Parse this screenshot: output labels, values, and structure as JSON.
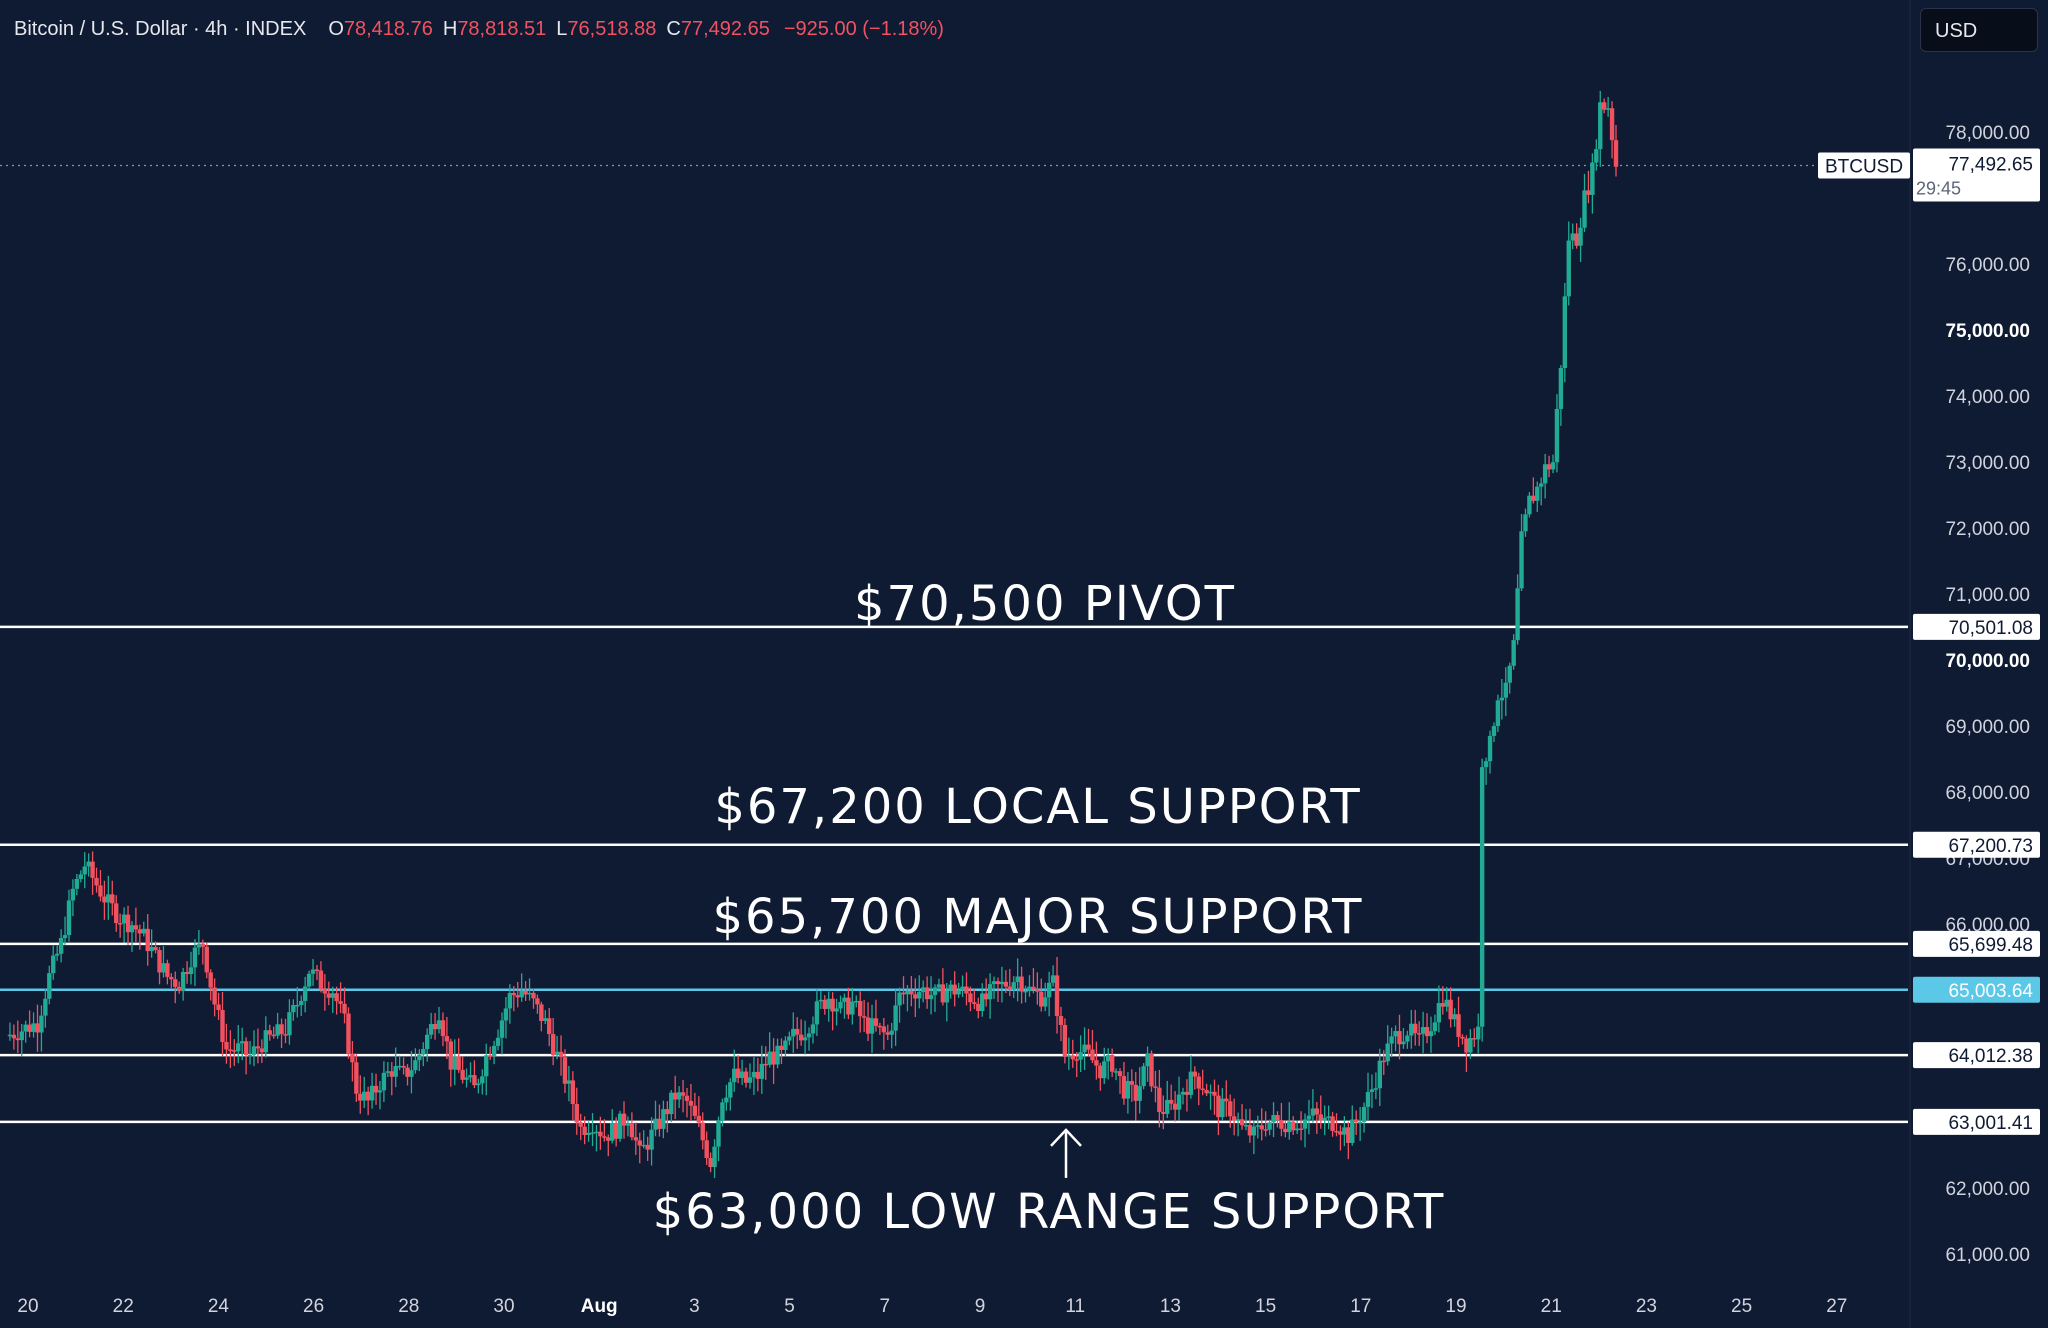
{
  "header": {
    "symbol": "Bitcoin / U.S. Dollar · 4h · INDEX",
    "open_key": "O",
    "open": "78,418.76",
    "high_key": "H",
    "high": "78,818.51",
    "low_key": "L",
    "low": "76,518.88",
    "close_key": "C",
    "close": "77,492.65",
    "change": "−925.00 (−1.18%)"
  },
  "currency": "USD",
  "colors": {
    "background": "#0f1a33",
    "up": "#22ab94",
    "down": "#f2525f",
    "level_line": "#ffffff",
    "cyan_line": "#5bc8e8"
  },
  "chart_data": {
    "type": "candlestick",
    "symbol_tag": "BTCUSD",
    "last_price_label": "77,492.65",
    "countdown": "29:45",
    "y_ticks": [
      "78,000.00",
      "76,000.00",
      "75,000.00",
      "74,000.00",
      "73,000.00",
      "72,000.00",
      "71,000.00",
      "70,000.00",
      "69,000.00",
      "68,000.00",
      "67,000.00",
      "66,000.00",
      "62,000.00",
      "61,000.00"
    ],
    "y_ticks_bold": [
      "75,000.00",
      "70,000.00"
    ],
    "x_ticks": [
      "20",
      "22",
      "24",
      "26",
      "28",
      "30",
      "Aug",
      "3",
      "5",
      "7",
      "9",
      "11",
      "13",
      "15",
      "17",
      "19",
      "21",
      "23",
      "25",
      "27"
    ],
    "levels": [
      {
        "price": 70501.08,
        "label": "70,501.08",
        "style": "white"
      },
      {
        "price": 67200.73,
        "label": "67,200.73",
        "style": "white"
      },
      {
        "price": 65699.48,
        "label": "65,699.48",
        "style": "white"
      },
      {
        "price": 65003.64,
        "label": "65,003.64",
        "style": "cyan"
      },
      {
        "price": 64012.38,
        "label": "64,012.38",
        "style": "white"
      },
      {
        "price": 63001.41,
        "label": "63,001.41",
        "style": "white"
      }
    ],
    "annotations": [
      {
        "text": "$70,500 PIVOT"
      },
      {
        "text": "$67,200 LOCAL SUPPORT"
      },
      {
        "text": "$65,700 MAJOR SUPPORT"
      },
      {
        "text": "$63,000 LOW RANGE SUPPORT"
      }
    ],
    "price_path": [
      [
        0,
        64300
      ],
      [
        4,
        64400
      ],
      [
        8,
        64500
      ],
      [
        11,
        65200
      ],
      [
        14,
        65700
      ],
      [
        17,
        66500
      ],
      [
        20,
        66900
      ],
      [
        23,
        66600
      ],
      [
        26,
        66300
      ],
      [
        29,
        66100
      ],
      [
        32,
        66000
      ],
      [
        35,
        65800
      ],
      [
        38,
        65500
      ],
      [
        41,
        65200
      ],
      [
        44,
        65100
      ],
      [
        47,
        65500
      ],
      [
        50,
        65700
      ],
      [
        53,
        64800
      ],
      [
        56,
        64100
      ],
      [
        59,
        64100
      ],
      [
        62,
        64000
      ],
      [
        65,
        64200
      ],
      [
        68,
        64300
      ],
      [
        71,
        64400
      ],
      [
        74,
        64800
      ],
      [
        77,
        65300
      ],
      [
        80,
        65100
      ],
      [
        83,
        65000
      ],
      [
        86,
        64500
      ],
      [
        89,
        63500
      ],
      [
        92,
        63300
      ],
      [
        95,
        63600
      ],
      [
        98,
        63800
      ],
      [
        101,
        63700
      ],
      [
        104,
        63900
      ],
      [
        107,
        64300
      ],
      [
        110,
        64700
      ],
      [
        113,
        63900
      ],
      [
        116,
        63700
      ],
      [
        119,
        63500
      ],
      [
        122,
        64000
      ],
      [
        125,
        64400
      ],
      [
        128,
        64900
      ],
      [
        131,
        65000
      ],
      [
        134,
        64800
      ],
      [
        137,
        64500
      ],
      [
        140,
        64000
      ],
      [
        143,
        63500
      ],
      [
        146,
        62900
      ],
      [
        149,
        63000
      ],
      [
        152,
        62800
      ],
      [
        155,
        62900
      ],
      [
        158,
        63100
      ],
      [
        161,
        62500
      ],
      [
        164,
        62800
      ],
      [
        167,
        63100
      ],
      [
        170,
        63400
      ],
      [
        173,
        63300
      ],
      [
        176,
        62900
      ],
      [
        179,
        62400
      ],
      [
        182,
        63400
      ],
      [
        185,
        63700
      ],
      [
        188,
        63600
      ],
      [
        191,
        63700
      ],
      [
        194,
        64000
      ],
      [
        197,
        64000
      ],
      [
        200,
        64300
      ],
      [
        203,
        64400
      ],
      [
        206,
        64700
      ],
      [
        209,
        64900
      ],
      [
        212,
        64700
      ],
      [
        215,
        64800
      ],
      [
        218,
        64500
      ],
      [
        221,
        64400
      ],
      [
        224,
        64300
      ],
      [
        227,
        64900
      ],
      [
        230,
        65000
      ],
      [
        233,
        65000
      ],
      [
        236,
        64900
      ],
      [
        239,
        65000
      ],
      [
        242,
        65000
      ],
      [
        245,
        64900
      ],
      [
        248,
        64800
      ],
      [
        251,
        65000
      ],
      [
        254,
        65100
      ],
      [
        257,
        65200
      ],
      [
        260,
        65000
      ],
      [
        263,
        64900
      ],
      [
        266,
        65100
      ],
      [
        269,
        64000
      ],
      [
        272,
        64100
      ],
      [
        275,
        64000
      ],
      [
        278,
        63800
      ],
      [
        281,
        63900
      ],
      [
        284,
        63500
      ],
      [
        287,
        63400
      ],
      [
        290,
        63900
      ],
      [
        293,
        63200
      ],
      [
        296,
        63200
      ],
      [
        299,
        63500
      ],
      [
        302,
        63700
      ],
      [
        305,
        63500
      ],
      [
        308,
        63200
      ],
      [
        311,
        63200
      ],
      [
        314,
        62900
      ],
      [
        317,
        62800
      ],
      [
        320,
        63000
      ],
      [
        323,
        63000
      ],
      [
        326,
        63000
      ],
      [
        329,
        63000
      ],
      [
        332,
        63100
      ],
      [
        335,
        63000
      ],
      [
        338,
        63000
      ],
      [
        341,
        62800
      ],
      [
        344,
        63100
      ],
      [
        347,
        63500
      ],
      [
        350,
        64000
      ],
      [
        353,
        64300
      ],
      [
        356,
        64400
      ],
      [
        359,
        64200
      ],
      [
        362,
        64500
      ],
      [
        365,
        64900
      ],
      [
        368,
        64500
      ],
      [
        371,
        64200
      ],
      [
        374,
        64400
      ],
      [
        375,
        68500
      ],
      [
        377,
        68700
      ],
      [
        379,
        69500
      ],
      [
        381,
        69500
      ],
      [
        383,
        70200
      ],
      [
        385,
        71800
      ],
      [
        387,
        72400
      ],
      [
        389,
        72600
      ],
      [
        391,
        72900
      ],
      [
        393,
        73000
      ],
      [
        395,
        74500
      ],
      [
        397,
        76400
      ],
      [
        399,
        76400
      ],
      [
        401,
        77000
      ],
      [
        403,
        77400
      ],
      [
        405,
        78400
      ],
      [
        407,
        78400
      ],
      [
        409,
        77500
      ]
    ]
  }
}
